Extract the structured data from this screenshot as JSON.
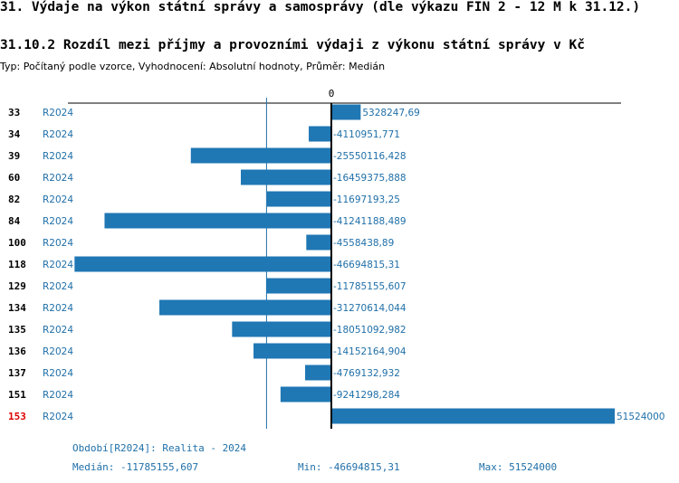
{
  "header": {
    "title": "31. Výdaje na výkon státní správy a samosprávy (dle výkazu FIN 2 - 12 M k 31.12.)",
    "subtitle": "31.10.2 Rozdíl mezi příjmy a provozními výdaji z výkonu státní správy v Kč",
    "params": "Typ: Počítaný podle vzorce, Vyhodnocení: Absolutní hodnoty, Průměr: Medián"
  },
  "chart_data": {
    "type": "bar",
    "orientation": "horizontal",
    "zero_label": "0",
    "median": -11785155.607,
    "min": -46694815.31,
    "max": 51524000,
    "rows": [
      {
        "id": "33",
        "period": "R2024",
        "value": 5328247.69,
        "label": "5328247,69",
        "highlight": false
      },
      {
        "id": "34",
        "period": "R2024",
        "value": -4110951.771,
        "label": "-4110951,771",
        "highlight": false
      },
      {
        "id": "39",
        "period": "R2024",
        "value": -25550116.428,
        "label": "-25550116,428",
        "highlight": false
      },
      {
        "id": "60",
        "period": "R2024",
        "value": -16459375.888,
        "label": "-16459375,888",
        "highlight": false
      },
      {
        "id": "82",
        "period": "R2024",
        "value": -11697193.25,
        "label": "-11697193,25",
        "highlight": false
      },
      {
        "id": "84",
        "period": "R2024",
        "value": -41241188.489,
        "label": "-41241188,489",
        "highlight": false
      },
      {
        "id": "100",
        "period": "R2024",
        "value": -4558438.89,
        "label": "-4558438,89",
        "highlight": false
      },
      {
        "id": "118",
        "period": "R2024",
        "value": -46694815.31,
        "label": "-46694815,31",
        "highlight": false
      },
      {
        "id": "129",
        "period": "R2024",
        "value": -11785155.607,
        "label": "-11785155,607",
        "highlight": false
      },
      {
        "id": "134",
        "period": "R2024",
        "value": -31270614.044,
        "label": "-31270614,044",
        "highlight": false
      },
      {
        "id": "135",
        "period": "R2024",
        "value": -18051092.982,
        "label": "-18051092,982",
        "highlight": false
      },
      {
        "id": "136",
        "period": "R2024",
        "value": -14152164.904,
        "label": "-14152164,904",
        "highlight": false
      },
      {
        "id": "137",
        "period": "R2024",
        "value": -4769132.932,
        "label": "-4769132,932",
        "highlight": false
      },
      {
        "id": "151",
        "period": "R2024",
        "value": -9241298.284,
        "label": "-9241298,284",
        "highlight": false
      },
      {
        "id": "153",
        "period": "R2024",
        "value": 51524000,
        "label": "51524000",
        "highlight": true
      }
    ]
  },
  "footer": {
    "period_note": "Období[R2024]: Realita - 2024",
    "median_text": "Medián: -11785155,607",
    "min_text": "Min: -46694815,31",
    "max_text": "Max: 51524000"
  },
  "colors": {
    "bar": "#1f77b4",
    "text_blue": "#1f6fa8",
    "highlight": "#dd0000",
    "axis": "#000000"
  }
}
